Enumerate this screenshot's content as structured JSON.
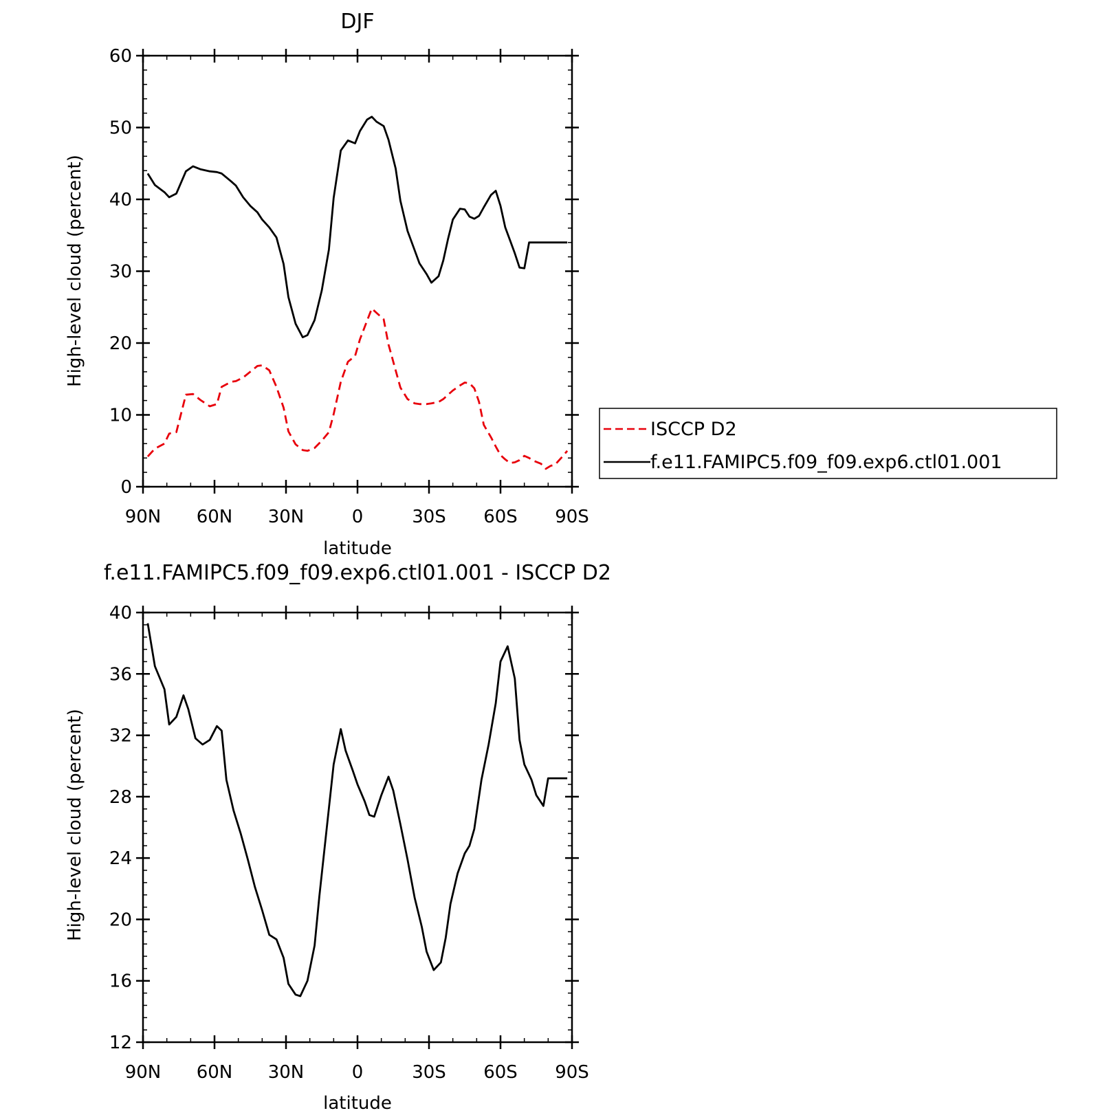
{
  "chart_data": [
    {
      "type": "line",
      "title": "DJF",
      "xlabel": "latitude",
      "ylabel": "High-level cloud (percent)",
      "ylim": [
        0,
        60
      ],
      "xlim": [
        90,
        -90
      ],
      "yticks": [
        "0",
        "10",
        "20",
        "30",
        "40",
        "50",
        "60"
      ],
      "xticks": [
        "90N",
        "60N",
        "30N",
        "0",
        "30S",
        "60S",
        "90S"
      ],
      "legend_position": "right",
      "series": [
        {
          "name": "ISCCP D2",
          "color": "#e8000b",
          "dash": "dashed",
          "x": [
            88,
            85,
            81,
            79,
            76,
            72,
            69,
            66,
            62,
            59,
            57,
            53,
            51,
            48,
            45,
            42,
            40,
            37,
            34,
            31,
            29,
            26,
            23,
            21,
            18,
            15,
            12,
            10,
            7,
            4,
            1,
            -1,
            -4,
            -6,
            -8,
            -11,
            -13,
            -16,
            -18,
            -21,
            -24,
            -26,
            -29,
            -31,
            -34,
            -36,
            -38,
            -40,
            -43,
            -45,
            -47,
            -49,
            -51,
            -53,
            -56,
            -58,
            -60,
            -62,
            -64,
            -66,
            -68,
            -70,
            -72,
            -74,
            -77,
            -79,
            -81,
            -83,
            -86,
            -88
          ],
          "values": [
            4.2,
            5.3,
            6.0,
            7.4,
            7.6,
            12.8,
            12.9,
            12.1,
            11.2,
            11.5,
            13.9,
            14.6,
            14.7,
            15.2,
            16.0,
            16.8,
            16.9,
            16.2,
            13.9,
            11.0,
            7.7,
            5.9,
            5.1,
            5.0,
            5.4,
            6.4,
            7.6,
            10.1,
            14.6,
            17.4,
            18.2,
            20.5,
            23.1,
            24.8,
            24.2,
            23.3,
            19.8,
            16.2,
            13.8,
            12.2,
            11.6,
            11.5,
            11.5,
            11.6,
            11.8,
            12.2,
            12.8,
            13.4,
            14.1,
            14.5,
            14.4,
            13.7,
            11.8,
            8.6,
            6.9,
            5.6,
            4.4,
            3.8,
            3.3,
            3.4,
            3.7,
            4.3,
            4.0,
            3.6,
            3.2,
            2.5,
            2.9,
            3.1,
            4.2,
            5.0
          ]
        },
        {
          "name": "f.e11.FAMIPC5.f09_f09.exp6.ctl01.001",
          "color": "#000000",
          "dash": "solid",
          "x": [
            88,
            85,
            81,
            79,
            76,
            72,
            69,
            66,
            62,
            59,
            57,
            53,
            51,
            48,
            45,
            42,
            40,
            37,
            34,
            31,
            29,
            26,
            23,
            21,
            18,
            15,
            12,
            10,
            7,
            4,
            1,
            -1,
            -4,
            -6,
            -8,
            -11,
            -13,
            -16,
            -18,
            -21,
            -24,
            -26,
            -29,
            -31,
            -34,
            -36,
            -38,
            -40,
            -43,
            -45,
            -47,
            -49,
            -51,
            -53,
            -56,
            -58,
            -60,
            -62,
            -64,
            -66,
            -68,
            -70,
            -72,
            -74,
            -77,
            -79,
            -81,
            -83,
            -86,
            -88
          ],
          "values": [
            43.6,
            42.0,
            41.0,
            40.3,
            40.8,
            43.9,
            44.6,
            44.2,
            43.9,
            43.8,
            43.6,
            42.5,
            41.9,
            40.3,
            39.1,
            38.2,
            37.2,
            36.1,
            34.7,
            31.0,
            26.4,
            22.7,
            20.8,
            21.1,
            23.2,
            27.3,
            33.0,
            40.2,
            46.8,
            48.2,
            47.8,
            49.5,
            51.1,
            51.5,
            50.8,
            50.2,
            48.3,
            44.3,
            39.8,
            35.6,
            32.9,
            31.1,
            29.6,
            28.4,
            29.3,
            31.5,
            34.5,
            37.2,
            38.7,
            38.6,
            37.6,
            37.3,
            37.7,
            38.9,
            40.6,
            41.2,
            39.1,
            36.1,
            34.3,
            32.5,
            30.5,
            30.4,
            34.0,
            34.0,
            34.0,
            34.0,
            34.0,
            34.0,
            34.0,
            34.0
          ]
        }
      ]
    },
    {
      "type": "line",
      "title": "f.e11.FAMIPC5.f09_f09.exp6.ctl01.001 - ISCCP D2",
      "xlabel": "latitude",
      "ylabel": "High-level cloud (percent)",
      "ylim": [
        12,
        40
      ],
      "xlim": [
        90,
        -90
      ],
      "yticks": [
        "12",
        "16",
        "20",
        "24",
        "28",
        "32",
        "36",
        "40"
      ],
      "xticks": [
        "90N",
        "60N",
        "30N",
        "0",
        "30S",
        "60S",
        "90S"
      ],
      "series": [
        {
          "color": "#000000",
          "dash": "solid",
          "x": [
            88,
            85,
            81,
            79,
            76,
            73,
            71,
            68,
            65,
            62,
            59,
            57,
            55,
            52,
            49,
            46,
            43,
            40,
            37,
            34,
            31,
            29,
            26,
            24,
            21,
            18,
            16,
            13,
            10,
            7,
            5,
            2,
            0,
            -3,
            -5,
            -7,
            -10,
            -13,
            -15,
            -18,
            -21,
            -24,
            -27,
            -29,
            -32,
            -35,
            -37,
            -39,
            -42,
            -45,
            -47,
            -49,
            -52,
            -55,
            -58,
            -60,
            -63,
            -66,
            -68,
            -70,
            -73,
            -75,
            -78,
            -80,
            -83,
            -85,
            -88
          ],
          "values": [
            39.3,
            36.5,
            35.0,
            32.7,
            33.2,
            34.6,
            33.7,
            31.8,
            31.4,
            31.7,
            32.6,
            32.3,
            29.1,
            27.1,
            25.6,
            23.9,
            22.1,
            20.6,
            19.0,
            18.7,
            17.5,
            15.8,
            15.1,
            15.0,
            16.0,
            18.3,
            21.5,
            25.8,
            30.1,
            32.4,
            31.0,
            29.7,
            28.8,
            27.7,
            26.8,
            26.7,
            28.1,
            29.3,
            28.4,
            26.2,
            23.9,
            21.4,
            19.5,
            17.9,
            16.7,
            17.2,
            18.8,
            21.0,
            23.0,
            24.3,
            24.8,
            25.9,
            29.1,
            31.4,
            34.1,
            36.8,
            37.8,
            35.7,
            31.7,
            30.1,
            29.1,
            28.1,
            27.4,
            29.2,
            29.2,
            29.2,
            29.2
          ]
        }
      ]
    }
  ]
}
